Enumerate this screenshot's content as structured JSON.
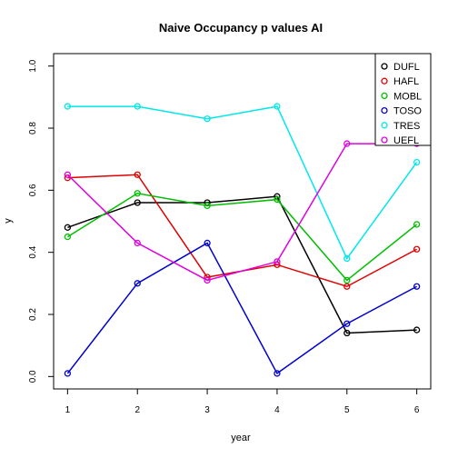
{
  "chart_data": {
    "type": "line",
    "title": "Naive Occupancy p values AI",
    "xlabel": "year",
    "ylabel": "y",
    "x": [
      1,
      2,
      3,
      4,
      5,
      6
    ],
    "xticks": [
      "1",
      "2",
      "3",
      "4",
      "5",
      "6"
    ],
    "yticks": [
      "0.0",
      "0.2",
      "0.4",
      "0.6",
      "0.8",
      "1.0"
    ],
    "xlim": [
      0.8,
      6.2
    ],
    "ylim": [
      -0.04,
      1.04
    ],
    "grid": false,
    "legend_position": "top-right",
    "series": [
      {
        "name": "DUFL",
        "color": "#000000",
        "values": [
          0.48,
          0.56,
          0.56,
          0.58,
          0.14,
          0.15
        ]
      },
      {
        "name": "HAFL",
        "color": "#DF0000",
        "values": [
          0.64,
          0.65,
          0.32,
          0.36,
          0.29,
          0.41
        ]
      },
      {
        "name": "MOBL",
        "color": "#00BF00",
        "values": [
          0.45,
          0.59,
          0.55,
          0.57,
          0.31,
          0.49
        ]
      },
      {
        "name": "TOSO",
        "color": "#0000CF",
        "values": [
          0.01,
          0.3,
          0.43,
          0.01,
          0.17,
          0.29
        ]
      },
      {
        "name": "TRES",
        "color": "#00E8E8",
        "values": [
          0.87,
          0.87,
          0.83,
          0.87,
          0.38,
          0.69
        ]
      },
      {
        "name": "UEFL",
        "color": "#DF00DF",
        "values": [
          0.65,
          0.43,
          0.31,
          0.37,
          0.75,
          0.75
        ]
      }
    ]
  }
}
